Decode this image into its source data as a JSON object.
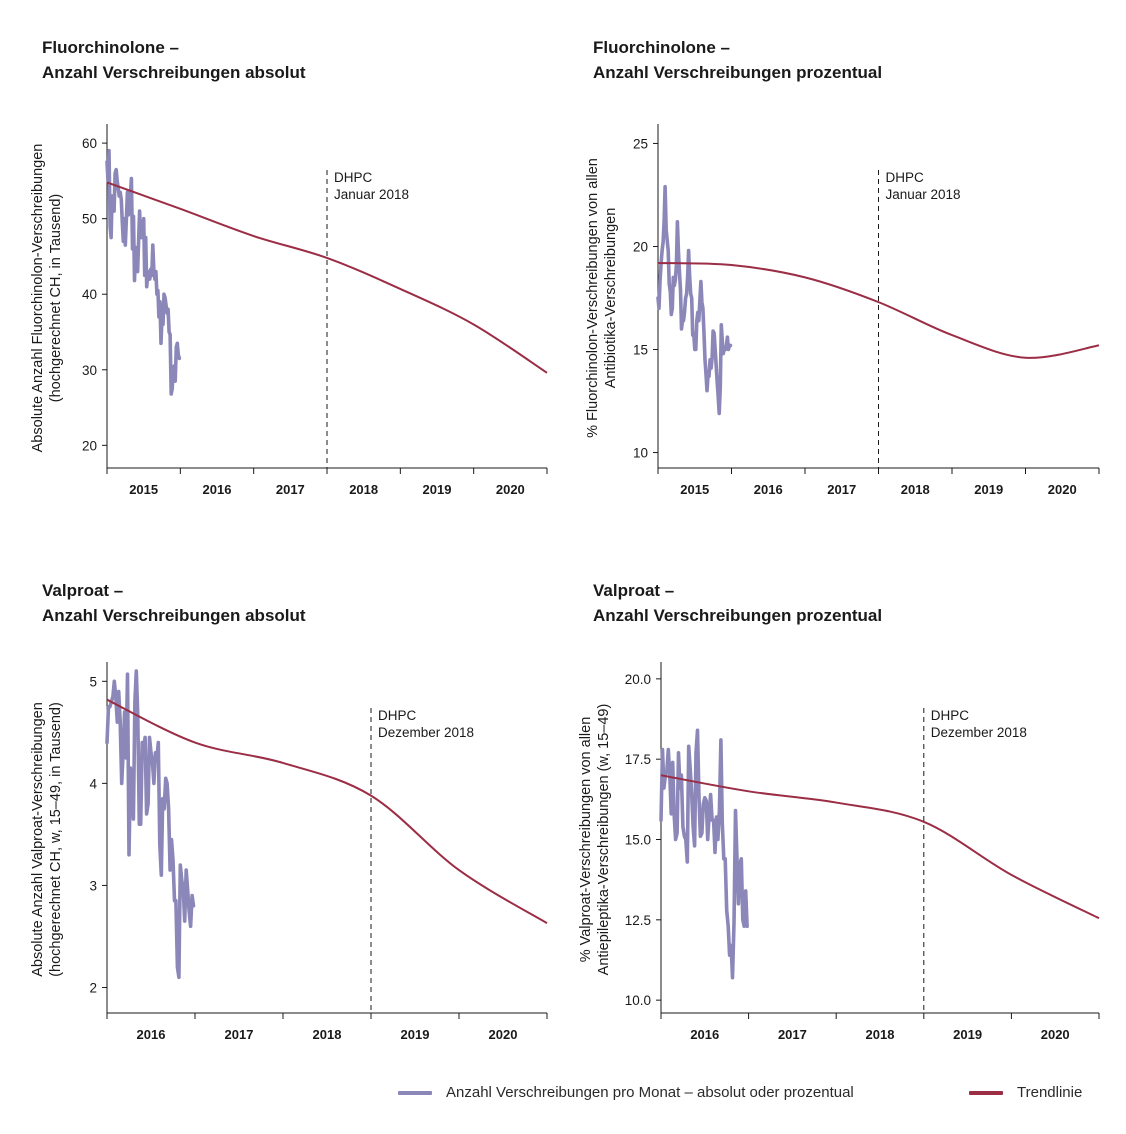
{
  "colors": {
    "series": "#8b87b8",
    "trend": "#9b2d45",
    "axis": "#1a1a1a",
    "annotation": "#1a1a1a"
  },
  "legend": {
    "series_label": "Anzahl Verschreibungen pro Monat – absolut oder prozentual",
    "trend_label": "Trendlinie"
  },
  "chart_data": [
    {
      "id": "fq_abs",
      "type": "line",
      "title_line1": "Fluorchinolone –",
      "title_line2": "Anzahl Verschreibungen absolut",
      "ylabel_line1": "Absolute Anzahl Fluorchinolon-Verschreibungen",
      "ylabel_line2": "(hochgerechnet CH, in Tausend)",
      "ylim": [
        17,
        62
      ],
      "yticks": [
        20,
        30,
        40,
        50,
        60
      ],
      "ytick_labels": [
        "20",
        "30",
        "40",
        "50",
        "60"
      ],
      "x_start": 2014.5,
      "x_end": 2020.5,
      "xtick_labels": [
        "2015",
        "2016",
        "2017",
        "2018",
        "2019",
        "2020"
      ],
      "annotation": {
        "x": 2017.5,
        "line1": "DHPC",
        "line2": "Januar 2018"
      },
      "series": [
        {
          "name": "Anzahl Verschreibungen pro Monat – absolut oder prozentual",
          "values": [
            57.5,
            55,
            59,
            49,
            47.5,
            53,
            51,
            51,
            56,
            56.5,
            55,
            54,
            53,
            53.5,
            52.5,
            49.5,
            47,
            50,
            46.5,
            50,
            53.5,
            50.5,
            51,
            53,
            55.3,
            46,
            50.3,
            41.8,
            46.2,
            44.5,
            43,
            47,
            51,
            47.5,
            47.5,
            48,
            50,
            42.5,
            47.5,
            41,
            42.5,
            43,
            42,
            43.3,
            42.5,
            46.5,
            43,
            42,
            43,
            40,
            40.5,
            37,
            39,
            33.5,
            37,
            36,
            40,
            39.5,
            38.5,
            37.5,
            38,
            35,
            34.7,
            26.8,
            27.5,
            30,
            30.5,
            28.5,
            33,
            33.5,
            32,
            31.5
          ]
        },
        {
          "name": "Trendlinie",
          "values": [
            54.8,
            51.3,
            47.7,
            44.8,
            40.7,
            36.0,
            29.6
          ],
          "x": [
            2014.5,
            2015.5,
            2016.5,
            2017.5,
            2018.5,
            2019.5,
            2020.5
          ]
        }
      ]
    },
    {
      "id": "fq_pct",
      "type": "line",
      "title_line1": "Fluorchinolone –",
      "title_line2": "Anzahl Verschreibungen prozentual",
      "ylabel_line1": "% Fluorchinolon-Verschreibungen von allen",
      "ylabel_line2": "Antibiotika-Verschreibungen",
      "ylim": [
        9.25,
        25.75
      ],
      "yticks": [
        10,
        15,
        20,
        25
      ],
      "ytick_labels": [
        "10",
        "15",
        "20",
        "25"
      ],
      "x_start": 2014.5,
      "x_end": 2020.5,
      "xtick_labels": [
        "2015",
        "2016",
        "2017",
        "2018",
        "2019",
        "2020"
      ],
      "annotation": {
        "x": 2017.5,
        "line1": "DHPC",
        "line2": "Januar 2018"
      },
      "series": [
        {
          "name": "Anzahl Verschreibungen pro Monat – absolut oder prozentual",
          "values": [
            17.5,
            17,
            18.3,
            19.2,
            19.8,
            20.2,
            21.2,
            22.9,
            20.8,
            20.3,
            19.8,
            18.2,
            17.8,
            16.7,
            17,
            18.5,
            18.1,
            18.4,
            19.1,
            21.2,
            19.8,
            18.8,
            17.9,
            16,
            16.4,
            16.4,
            16.8,
            17.5,
            17.7,
            18.5,
            19.8,
            18.6,
            17.7,
            17.5,
            15.7,
            15.8,
            15,
            15,
            16.4,
            16.8,
            16.4,
            17.4,
            18.3,
            17.3,
            17,
            15.9,
            14.5,
            13.8,
            13,
            13.7,
            13.7,
            14.5,
            14.1,
            14.6,
            15.9,
            15.8,
            15,
            14.2,
            13.4,
            12.7,
            11.9,
            13.2,
            16.2,
            15.4,
            14.8,
            15.1,
            15,
            15.2,
            15.6,
            15,
            15.2,
            15.2
          ]
        },
        {
          "name": "Trendlinie",
          "values": [
            19.2,
            19.1,
            18.5,
            17.3,
            15.7,
            14.6,
            15.2
          ],
          "x": [
            2014.5,
            2015.5,
            2016.5,
            2017.5,
            2018.5,
            2019.5,
            2020.5
          ]
        }
      ]
    },
    {
      "id": "vp_abs",
      "type": "line",
      "title_line1": "Valproat –",
      "title_line2": "Anzahl Verschreibungen absolut",
      "ylabel_line1": "Absolute Anzahl Valproat-Verschreibungen",
      "ylabel_line2": "(hochgerechnet CH, w, 15–49, in Tausend)",
      "ylim": [
        1.75,
        5.15
      ],
      "yticks": [
        2,
        3,
        4,
        5
      ],
      "ytick_labels": [
        "2",
        "3",
        "4",
        "5"
      ],
      "x_start": 2015.5,
      "x_end": 2020.5,
      "xtick_labels": [
        "2016",
        "2017",
        "2018",
        "2019",
        "2020"
      ],
      "annotation": {
        "x": 2018.5,
        "line1": "DHPC",
        "line2": "Dezember 2018"
      },
      "series": [
        {
          "name": "Anzahl Verschreibungen pro Monat – absolut oder prozentual",
          "values": [
            4.4,
            4.75,
            4.75,
            4.8,
            4.85,
            5.0,
            4.85,
            4.6,
            4.9,
            4.6,
            4.0,
            4.3,
            4.7,
            4.25,
            5.07,
            3.3,
            4.15,
            4.1,
            3.65,
            4.8,
            5.1,
            4.65,
            3.6,
            3.6,
            4.4,
            4.35,
            4.45,
            3.7,
            3.8,
            4.45,
            4.3,
            4.2,
            4.0,
            4.3,
            4.25,
            4.4,
            3.4,
            3.1,
            3.85,
            3.75,
            4.05,
            4.0,
            3.75,
            3.15,
            3.45,
            3.25,
            2.85,
            2.85,
            2.2,
            2.1,
            3.2,
            3.05,
            2.95,
            2.65,
            3.15,
            2.95,
            2.75,
            2.6,
            2.9,
            2.8
          ]
        },
        {
          "name": "Trendlinie",
          "values": [
            4.82,
            4.4,
            4.2,
            3.88,
            3.15,
            2.63
          ],
          "x": [
            2015.5,
            2016.5,
            2017.5,
            2018.5,
            2019.5,
            2020.5
          ]
        }
      ]
    },
    {
      "id": "vp_pct",
      "type": "line",
      "title_line1": "Valproat –",
      "title_line2": "Anzahl Verschreibungen prozentual",
      "ylabel_line1": "% Valproat-Verschreibungen von allen",
      "ylabel_line2": "Antiepileptika-Verschreibungen (w, 15–49)",
      "ylim": [
        9.6,
        20.4
      ],
      "yticks": [
        10,
        12.5,
        15,
        17.5,
        20
      ],
      "ytick_labels": [
        "10.0",
        "12.5",
        "15.0",
        "17.5",
        "20.0"
      ],
      "x_start": 2015.5,
      "x_end": 2020.5,
      "xtick_labels": [
        "2016",
        "2017",
        "2018",
        "2019",
        "2020"
      ],
      "annotation": {
        "x": 2018.5,
        "line1": "DHPC",
        "line2": "Dezember 2018"
      },
      "series": [
        {
          "name": "Anzahl Verschreibungen pro Monat – absolut oder prozentual",
          "values": [
            15.6,
            17.8,
            16.6,
            17.0,
            17.1,
            17.8,
            17.0,
            15.8,
            17.4,
            15.8,
            15.0,
            15.2,
            17.7,
            16.6,
            17.0,
            15.4,
            15.1,
            15.0,
            14.3,
            17.9,
            17.2,
            16.4,
            15.4,
            14.8,
            17.7,
            18.4,
            16.3,
            15.1,
            15.2,
            16.1,
            16.3,
            16.2,
            15.0,
            15.8,
            16.4,
            15.6,
            15.6,
            14.6,
            15.7,
            15.0,
            15.9,
            18.1,
            15.5,
            14.4,
            14.4,
            12.8,
            12.3,
            11.4,
            11.7,
            10.7,
            12.4,
            15.9,
            14.5,
            13.0,
            14.2,
            14.4,
            12.5,
            12.3,
            13.4,
            12.3
          ]
        },
        {
          "name": "Trendlinie",
          "values": [
            17.0,
            16.5,
            16.15,
            15.55,
            13.9,
            12.55
          ],
          "x": [
            2015.5,
            2016.5,
            2017.5,
            2018.5,
            2019.5,
            2020.5
          ]
        }
      ]
    }
  ]
}
